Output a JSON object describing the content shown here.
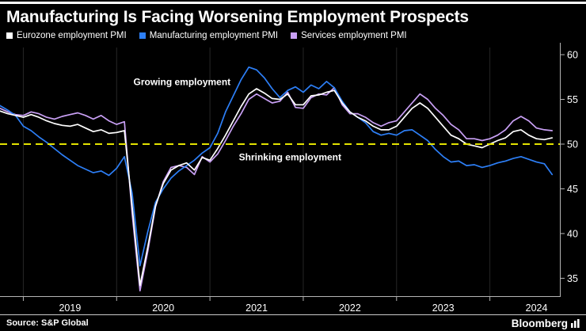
{
  "header": {
    "title": "Manufacturing Is Facing Worsening Employment Prospects"
  },
  "legend": [
    {
      "label": "Eurozone employment PMI",
      "color": "#ffffff"
    },
    {
      "label": "Manufacturing employment PMI",
      "color": "#2d7ff7"
    },
    {
      "label": "Services employment PMI",
      "color": "#c9a0f5"
    }
  ],
  "footer": {
    "source": "Source: S&P Global",
    "brand": "Bloomberg"
  },
  "chart_data": {
    "type": "line",
    "title": "Manufacturing Is Facing Worsening Employment Prospects",
    "frequency": "monthly",
    "start_month": "2018-10",
    "x_start": 2018.75,
    "x_domain": [
      2018.75,
      2024.75
    ],
    "ylim": [
      33,
      60.8
    ],
    "yticks": [
      35,
      40,
      45,
      50,
      55,
      60
    ],
    "x_gridlines": [
      2019,
      2020,
      2021,
      2022,
      2023,
      2024
    ],
    "x_tick_labels": [
      "2019",
      "2020",
      "2021",
      "2022",
      "2023",
      "2024"
    ],
    "baseline": {
      "value": 50,
      "color": "#e3e300"
    },
    "annotations": [
      {
        "text": "Growing employment",
        "x": 2020.18,
        "y": 56.6
      },
      {
        "text": "Shrinking employment",
        "x": 2021.31,
        "y": 48.2
      }
    ],
    "series": [
      {
        "id": "eurozone",
        "name": "Eurozone employment PMI",
        "color": "#ffffff",
        "values": [
          53.7,
          53.4,
          53.2,
          53.0,
          53.3,
          53.0,
          52.6,
          52.3,
          52.1,
          52.0,
          52.2,
          51.8,
          51.4,
          51.6,
          51.2,
          51.3,
          51.5,
          43.0,
          34.2,
          38.5,
          43.1,
          45.6,
          47.1,
          47.6,
          47.9,
          47.1,
          48.5,
          48.2,
          49.5,
          51.0,
          52.6,
          54.2,
          55.6,
          56.2,
          55.7,
          55.1,
          55.0,
          55.6,
          54.4,
          54.4,
          55.4,
          55.5,
          55.8,
          56.0,
          54.6,
          53.6,
          53.0,
          52.6,
          52.0,
          51.6,
          51.6,
          52.0,
          53.0,
          54.0,
          54.6,
          54.0,
          53.0,
          52.0,
          51.0,
          50.6,
          50.0,
          49.8,
          49.6,
          50.0,
          50.4,
          50.7,
          51.4,
          51.6,
          51.0,
          50.6,
          50.5,
          50.7
        ]
      },
      {
        "id": "manufacturing",
        "name": "Manufacturing employment PMI",
        "color": "#2d7ff7",
        "values": [
          54.3,
          53.8,
          53.2,
          52.0,
          51.5,
          50.8,
          50.2,
          49.5,
          48.8,
          48.2,
          47.6,
          47.2,
          46.8,
          47.0,
          46.5,
          47.3,
          48.6,
          44.5,
          36.4,
          40.2,
          43.5,
          45.0,
          46.2,
          47.0,
          47.6,
          48.2,
          49.0,
          49.6,
          51.2,
          53.6,
          55.4,
          57.2,
          58.6,
          58.3,
          57.4,
          56.2,
          55.2,
          56.0,
          56.4,
          55.8,
          56.6,
          56.2,
          57.0,
          56.3,
          54.8,
          53.6,
          53.0,
          52.4,
          51.4,
          51.0,
          51.2,
          51.0,
          51.5,
          51.6,
          51.0,
          50.4,
          49.4,
          48.6,
          48.0,
          48.1,
          47.6,
          47.7,
          47.4,
          47.6,
          47.9,
          48.1,
          48.4,
          48.6,
          48.3,
          48.0,
          47.8,
          46.6
        ]
      },
      {
        "id": "services",
        "name": "Services employment PMI",
        "color": "#c9a0f5",
        "values": [
          54.0,
          53.6,
          53.3,
          53.2,
          53.6,
          53.4,
          53.0,
          52.8,
          53.1,
          53.3,
          53.5,
          53.2,
          52.8,
          53.2,
          52.6,
          52.2,
          52.5,
          42.2,
          33.6,
          38.0,
          43.0,
          45.8,
          47.4,
          47.6,
          47.4,
          46.6,
          48.6,
          48.0,
          48.9,
          50.4,
          52.0,
          53.4,
          55.0,
          55.6,
          55.1,
          54.6,
          54.8,
          55.8,
          54.1,
          54.0,
          55.2,
          55.6,
          55.5,
          56.3,
          54.4,
          53.4,
          53.4,
          53.0,
          52.4,
          52.0,
          52.4,
          52.6,
          53.6,
          54.6,
          55.6,
          55.0,
          54.0,
          53.2,
          52.2,
          51.6,
          50.6,
          50.6,
          50.4,
          50.6,
          51.0,
          51.6,
          52.6,
          53.1,
          52.6,
          51.8,
          51.6,
          51.5
        ]
      }
    ]
  }
}
